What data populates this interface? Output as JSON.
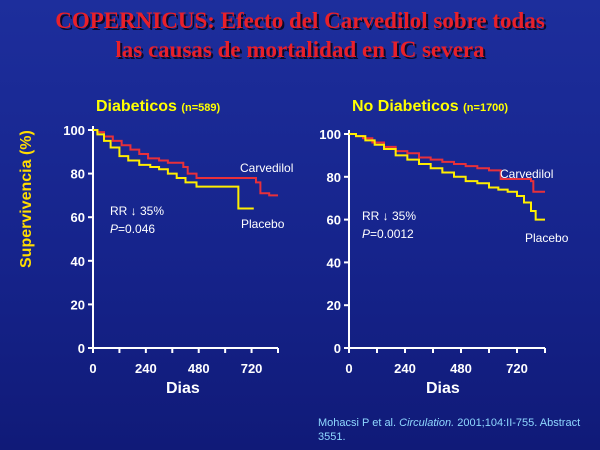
{
  "slide": {
    "title_line1": "COPERNICUS: Efecto del Carvedilol sobre todas",
    "title_line2": "las causas de mortalidad en IC severa",
    "ylabel": "Supervivencia (%)",
    "citation_text": "Mohacsi P et al. ",
    "citation_journal": "Circulation.",
    "citation_rest": " 2001;104:II-755. Abstract 3551."
  },
  "colors": {
    "carvedilol": "#e8303a",
    "placebo": "#ffee00",
    "axis": "#ffffff",
    "title": "#e8202a"
  },
  "chart_data": [
    {
      "type": "line",
      "title": "Diabeticos",
      "subtitle": "(n=589)",
      "xlabel": "Dias",
      "ylabel": "Supervivencia (%)",
      "xlim": [
        0,
        840
      ],
      "ylim": [
        0,
        100
      ],
      "xticks": [
        0,
        240,
        480,
        720
      ],
      "yticks": [
        0,
        20,
        40,
        60,
        80,
        100
      ],
      "annotation_rr": "RR ↓ 35%",
      "annotation_p": "P=0.046",
      "series": [
        {
          "name": "Carvedilol",
          "color": "#e8303a",
          "points": [
            [
              0,
              100
            ],
            [
              20,
              99
            ],
            [
              50,
              97
            ],
            [
              90,
              95
            ],
            [
              130,
              93
            ],
            [
              170,
              91
            ],
            [
              210,
              89
            ],
            [
              250,
              87
            ],
            [
              300,
              86
            ],
            [
              340,
              85
            ],
            [
              380,
              85
            ],
            [
              410,
              83
            ],
            [
              430,
              80
            ],
            [
              470,
              78
            ],
            [
              520,
              78
            ],
            [
              580,
              78
            ],
            [
              640,
              78
            ],
            [
              700,
              78
            ],
            [
              740,
              76
            ],
            [
              760,
              71
            ],
            [
              800,
              70
            ],
            [
              840,
              70
            ]
          ]
        },
        {
          "name": "Placebo",
          "color": "#ffee00",
          "points": [
            [
              0,
              100
            ],
            [
              20,
              98
            ],
            [
              50,
              95
            ],
            [
              80,
              92
            ],
            [
              120,
              88
            ],
            [
              160,
              86
            ],
            [
              210,
              84
            ],
            [
              260,
              83
            ],
            [
              300,
              82
            ],
            [
              340,
              80
            ],
            [
              380,
              78
            ],
            [
              420,
              76
            ],
            [
              470,
              74
            ],
            [
              530,
              74
            ],
            [
              590,
              74
            ],
            [
              640,
              74
            ],
            [
              660,
              64
            ],
            [
              700,
              64
            ],
            [
              730,
              64
            ]
          ]
        }
      ]
    },
    {
      "type": "line",
      "title": "No Diabeticos",
      "subtitle": "(n=1700)",
      "xlabel": "Dias",
      "ylabel": "",
      "xlim": [
        0,
        840
      ],
      "ylim": [
        0,
        100
      ],
      "xticks": [
        0,
        240,
        480,
        720
      ],
      "yticks": [
        0,
        20,
        40,
        60,
        80,
        100
      ],
      "annotation_rr": "RR ↓ 35%",
      "annotation_p": "P=0.0012",
      "series": [
        {
          "name": "Carvedilol",
          "color": "#e8303a",
          "points": [
            [
              0,
              100
            ],
            [
              30,
              99
            ],
            [
              60,
              98
            ],
            [
              100,
              96
            ],
            [
              150,
              94
            ],
            [
              200,
              92
            ],
            [
              250,
              91
            ],
            [
              300,
              89
            ],
            [
              350,
              88
            ],
            [
              400,
              87
            ],
            [
              450,
              86
            ],
            [
              500,
              85
            ],
            [
              550,
              84
            ],
            [
              600,
              83
            ],
            [
              640,
              83
            ],
            [
              650,
              79
            ],
            [
              700,
              79
            ],
            [
              750,
              79
            ],
            [
              780,
              78
            ],
            [
              790,
              73
            ],
            [
              840,
              73
            ]
          ]
        },
        {
          "name": "Placebo",
          "color": "#ffee00",
          "points": [
            [
              0,
              100
            ],
            [
              30,
              99
            ],
            [
              70,
              97
            ],
            [
              110,
              95
            ],
            [
              150,
              93
            ],
            [
              200,
              90
            ],
            [
              250,
              88
            ],
            [
              300,
              86
            ],
            [
              350,
              84
            ],
            [
              400,
              82
            ],
            [
              450,
              80
            ],
            [
              500,
              78
            ],
            [
              550,
              77
            ],
            [
              600,
              75
            ],
            [
              640,
              74
            ],
            [
              680,
              73
            ],
            [
              720,
              71
            ],
            [
              750,
              68
            ],
            [
              780,
              64
            ],
            [
              800,
              60
            ],
            [
              840,
              60
            ]
          ]
        }
      ]
    }
  ]
}
